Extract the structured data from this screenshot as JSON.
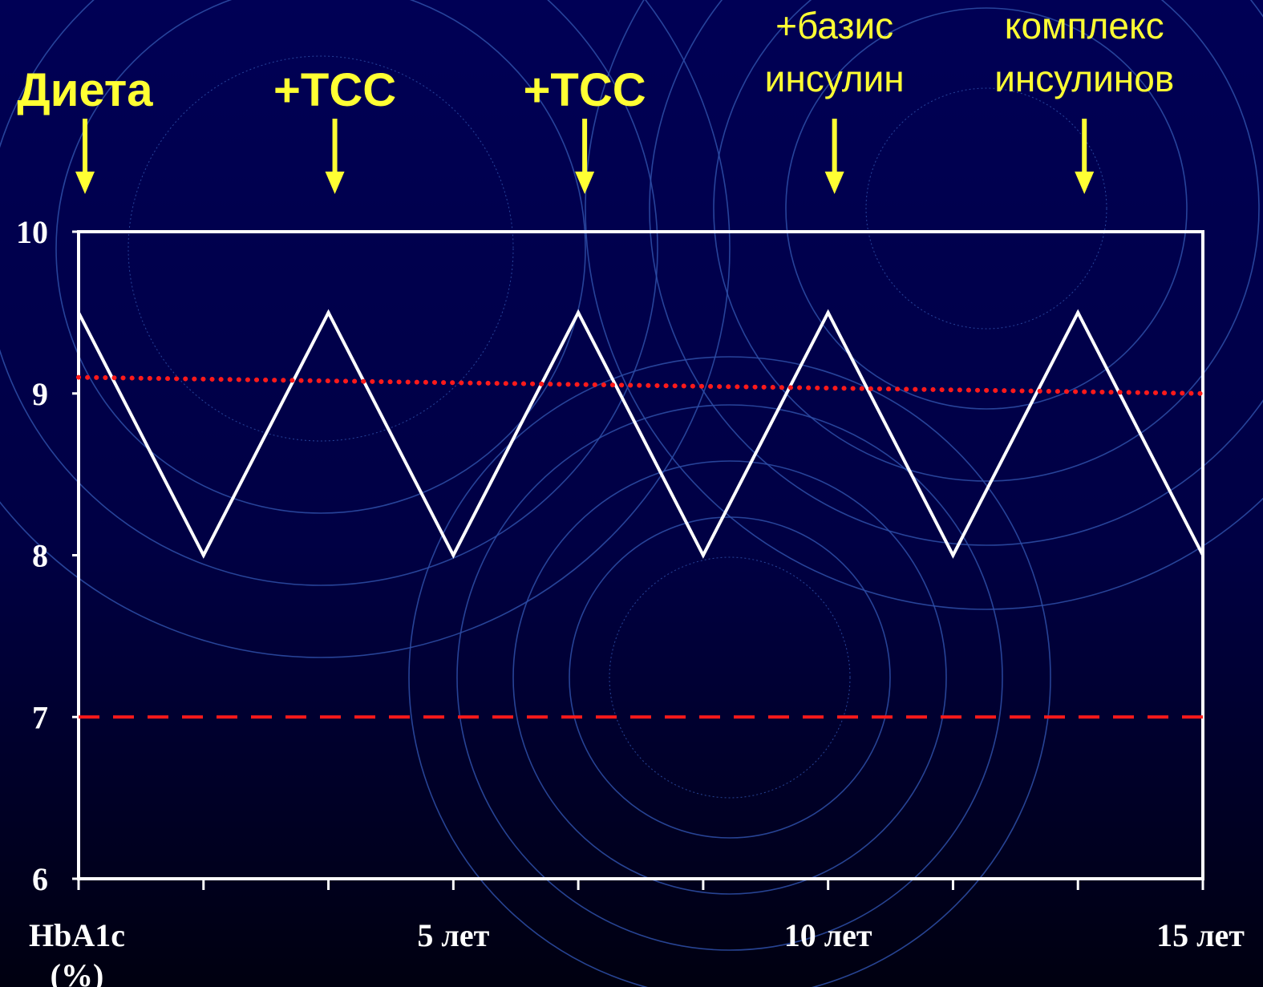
{
  "colors": {
    "background_top": "#000055",
    "background_bottom": "#000010",
    "circles": "#2e4fa8",
    "hba1c_line": "#ffffff",
    "trend_line": "#ff1a1a",
    "target_line": "#ff1a1a",
    "annotation": "#ffff33",
    "axis": "#ffffff"
  },
  "annotations": [
    {
      "lines": [
        "Диета"
      ],
      "x": 0,
      "style": "bold"
    },
    {
      "lines": [
        "+ТСС"
      ],
      "x": 3,
      "style": "bold"
    },
    {
      "lines": [
        "+ТСС"
      ],
      "x": 6,
      "style": "bold"
    },
    {
      "lines": [
        "+базис",
        "инсулин"
      ],
      "x": 9,
      "style": "light"
    },
    {
      "lines": [
        "комплекс",
        "инсулинов"
      ],
      "x": 12,
      "style": "light"
    }
  ],
  "chart_data": {
    "type": "line",
    "title": "",
    "xlabel": "",
    "ylabel": "HbA1c (%)",
    "ylim": [
      6,
      10
    ],
    "xlim": [
      0,
      13.5
    ],
    "x_tick_positions": [
      0,
      1.5,
      3,
      4.5,
      6,
      7.5,
      9,
      10.5,
      12,
      13.5
    ],
    "x_tick_labels": [
      {
        "x": 4.5,
        "label": "5 лет"
      },
      {
        "x": 9,
        "label": "10 лет"
      },
      {
        "x": 13.5,
        "label": "15 лет"
      }
    ],
    "y_ticks": [
      6,
      7,
      8,
      9,
      10
    ],
    "grid": false,
    "series": [
      {
        "style": "solid",
        "color": "#ffffff",
        "x": [
          0,
          1.5,
          3,
          4.5,
          6,
          7.5,
          9,
          10.5,
          12,
          13.5
        ],
        "values": [
          9.5,
          8,
          9.5,
          8,
          9.5,
          8,
          9.5,
          8,
          9.5,
          8
        ]
      },
      {
        "style": "dotted",
        "color": "#ff1a1a",
        "x": [
          0,
          13.5
        ],
        "values": [
          9.1,
          9.0
        ]
      },
      {
        "style": "dashed",
        "color": "#ff1a1a",
        "x": [
          0,
          13.5
        ],
        "values": [
          7,
          7
        ]
      }
    ]
  }
}
